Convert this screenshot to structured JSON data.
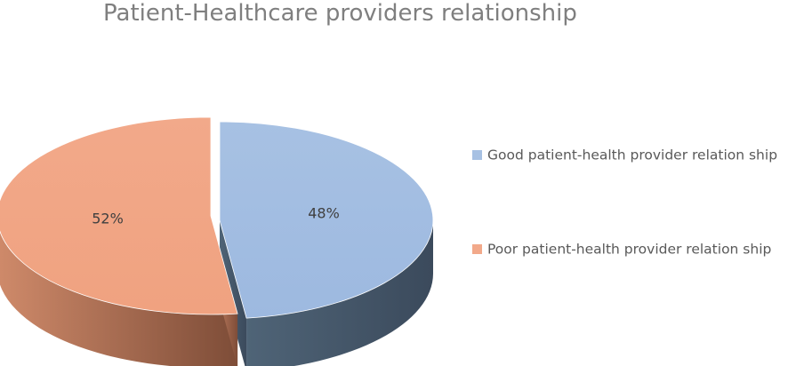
{
  "chart_data": {
    "type": "pie",
    "title": "Patient-Healthcare providers relationship",
    "categories": [
      "Good patient-health provider relation ship",
      "Poor patient-health provider relation ship"
    ],
    "values": [
      48,
      52
    ],
    "data_labels": [
      "48%",
      "52%"
    ],
    "legend_position": "right",
    "three_d": true,
    "exploded": true,
    "colors": {
      "slices_top": [
        "#a7c1e3",
        "#f2a98a"
      ],
      "slices_side_light": [
        "#4f6477",
        "#cf8a6a"
      ],
      "slices_side_dark": [
        "#3b4a5c",
        "#7e4d38"
      ]
    }
  }
}
